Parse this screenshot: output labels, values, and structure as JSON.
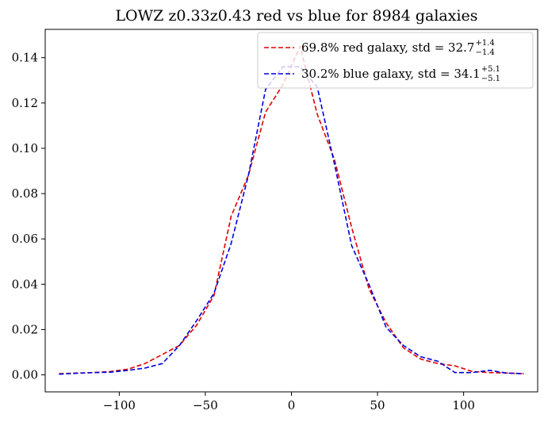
{
  "chart_data": {
    "type": "line",
    "title": "LOWZ z0.33z0.43 red vs blue for 8984 galaxies",
    "xlabel": "",
    "ylabel": "",
    "xlim": [
      -143,
      143
    ],
    "ylim": [
      -0.0075,
      0.1525
    ],
    "xticks": [
      -100,
      -50,
      0,
      50,
      100
    ],
    "xtick_labels": [
      "−100",
      "−50",
      "0",
      "50",
      "100"
    ],
    "yticks": [
      0.0,
      0.02,
      0.04,
      0.06,
      0.08,
      0.1,
      0.12,
      0.14
    ],
    "ytick_labels": [
      "0.00",
      "0.02",
      "0.04",
      "0.06",
      "0.08",
      "0.10",
      "0.12",
      "0.14"
    ],
    "grid": false,
    "legend_position": "top-right",
    "series": [
      {
        "name": "69.8% red galaxy, std = 32.7",
        "std_plus": "+1.4",
        "std_minus": "−1.4",
        "color": "#e00000",
        "linestyle": "dashed",
        "x": [
          -135,
          -125,
          -115,
          -105,
          -95,
          -85,
          -75,
          -65,
          -55,
          -45,
          -35,
          -25,
          -15,
          -5,
          5,
          15,
          25,
          35,
          45,
          55,
          65,
          75,
          85,
          95,
          105,
          115,
          125,
          135
        ],
        "y": [
          0.0005,
          0.0008,
          0.001,
          0.0015,
          0.0025,
          0.005,
          0.009,
          0.013,
          0.022,
          0.035,
          0.07,
          0.088,
          0.116,
          0.128,
          0.145,
          0.115,
          0.095,
          0.065,
          0.038,
          0.023,
          0.012,
          0.007,
          0.005,
          0.004,
          0.0015,
          0.001,
          0.0008,
          0.0005
        ]
      },
      {
        "name": "30.2% blue galaxy, std = 34.1",
        "std_plus": "+5.1",
        "std_minus": "−5.1",
        "color": "#0000e0",
        "linestyle": "dashed",
        "x": [
          -135,
          -125,
          -115,
          -105,
          -95,
          -85,
          -75,
          -65,
          -55,
          -45,
          -35,
          -25,
          -15,
          -5,
          5,
          15,
          25,
          35,
          45,
          55,
          65,
          75,
          85,
          95,
          105,
          115,
          125,
          135
        ],
        "y": [
          0.0003,
          0.0007,
          0.001,
          0.0012,
          0.002,
          0.003,
          0.005,
          0.013,
          0.024,
          0.036,
          0.058,
          0.088,
          0.126,
          0.136,
          0.136,
          0.127,
          0.093,
          0.057,
          0.04,
          0.021,
          0.013,
          0.008,
          0.006,
          0.001,
          0.001,
          0.002,
          0.0008,
          0.0005
        ]
      }
    ]
  }
}
